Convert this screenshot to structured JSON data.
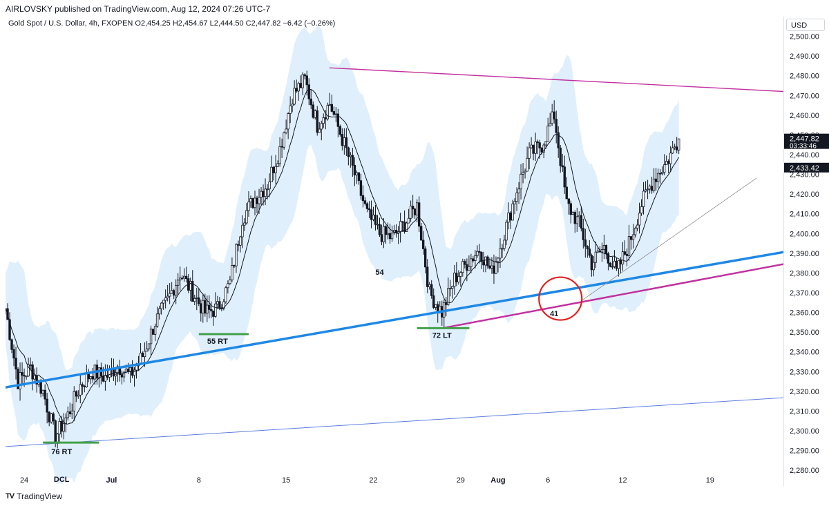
{
  "header": {
    "published": "AIRLOVSKY published on TradingView.com, Aug 12, 2024 07:26 UTC-7",
    "symbol": "Gold Spot / U.S. Dollar, 4h, FXOPEN",
    "ohlc": "O2,454.25  H2,454.67  L2,444.50  C2,447.82  −6.42 (−0.26%)"
  },
  "price_scale": {
    "currency": "USD",
    "ticks": [
      "2,500.00",
      "2,490.00",
      "2,480.00",
      "2,470.00",
      "2,460.00",
      "2,450.00",
      "2,440.00",
      "2,430.00",
      "2,420.00",
      "2,410.00",
      "2,400.00",
      "2,390.00",
      "2,380.00",
      "2,370.00",
      "2,360.00",
      "2,350.00",
      "2,340.00",
      "2,330.00",
      "2,320.00",
      "2,310.00",
      "2,300.00",
      "2,290.00",
      "2,280.00"
    ],
    "last_price": "2,447.82",
    "countdown": "03:33:46",
    "ma_value": "2,433.42"
  },
  "time_axis": {
    "labels": [
      "24",
      "Jul",
      "8",
      "15",
      "22",
      "29",
      "Aug",
      "6",
      "12",
      "19"
    ]
  },
  "footer": {
    "brand": "TradingView",
    "logo": "TV"
  },
  "chart_data": {
    "type": "candlestick",
    "title": "Gold Spot / U.S. Dollar, 4h, FXOPEN",
    "ylim": [
      2272,
      2510
    ],
    "x_range_days": [
      "Jun 22",
      "Aug 22"
    ],
    "colors": {
      "candle": "#131722",
      "band_fill": "#d6e9fb",
      "ma": "#131722",
      "blue_trend": "#1e88e5",
      "magenta_trend": "#c2309e",
      "thin_blue": "#5b7de0",
      "green_marks": "#43a047",
      "circle": "#e0201e",
      "thin_gray": "#8a8a8a"
    },
    "price_path": [
      {
        "day": 0,
        "price": 2362
      },
      {
        "day": 1,
        "price": 2325
      },
      {
        "day": 2,
        "price": 2332
      },
      {
        "day": 3,
        "price": 2320
      },
      {
        "day": 4,
        "price": 2297
      },
      {
        "day": 5,
        "price": 2308
      },
      {
        "day": 6,
        "price": 2323
      },
      {
        "day": 7,
        "price": 2330
      },
      {
        "day": 8,
        "price": 2327
      },
      {
        "day": 9,
        "price": 2333
      },
      {
        "day": 10,
        "price": 2328
      },
      {
        "day": 11,
        "price": 2338
      },
      {
        "day": 12,
        "price": 2355
      },
      {
        "day": 13,
        "price": 2366
      },
      {
        "day": 14,
        "price": 2380
      },
      {
        "day": 15,
        "price": 2370
      },
      {
        "day": 16,
        "price": 2360
      },
      {
        "day": 17,
        "price": 2362
      },
      {
        "day": 18,
        "price": 2375
      },
      {
        "day": 19,
        "price": 2408
      },
      {
        "day": 20,
        "price": 2418
      },
      {
        "day": 21,
        "price": 2425
      },
      {
        "day": 22,
        "price": 2443
      },
      {
        "day": 23,
        "price": 2470
      },
      {
        "day": 24,
        "price": 2478
      },
      {
        "day": 25,
        "price": 2455
      },
      {
        "day": 26,
        "price": 2466
      },
      {
        "day": 27,
        "price": 2448
      },
      {
        "day": 28,
        "price": 2430
      },
      {
        "day": 29,
        "price": 2410
      },
      {
        "day": 30,
        "price": 2400
      },
      {
        "day": 31,
        "price": 2398
      },
      {
        "day": 32,
        "price": 2405
      },
      {
        "day": 33,
        "price": 2414
      },
      {
        "day": 34,
        "price": 2370
      },
      {
        "day": 35,
        "price": 2360
      },
      {
        "day": 36,
        "price": 2377
      },
      {
        "day": 37,
        "price": 2385
      },
      {
        "day": 38,
        "price": 2392
      },
      {
        "day": 39,
        "price": 2380
      },
      {
        "day": 40,
        "price": 2400
      },
      {
        "day": 41,
        "price": 2422
      },
      {
        "day": 42,
        "price": 2440
      },
      {
        "day": 43,
        "price": 2445
      },
      {
        "day": 44,
        "price": 2460
      },
      {
        "day": 45,
        "price": 2415
      },
      {
        "day": 46,
        "price": 2405
      },
      {
        "day": 47,
        "price": 2385
      },
      {
        "day": 48,
        "price": 2393
      },
      {
        "day": 49,
        "price": 2380
      },
      {
        "day": 50,
        "price": 2395
      },
      {
        "day": 51,
        "price": 2415
      },
      {
        "day": 52,
        "price": 2428
      },
      {
        "day": 53,
        "price": 2436
      },
      {
        "day": 54,
        "price": 2448
      }
    ],
    "trendlines": [
      {
        "name": "blue-main",
        "p1": {
          "day": 0,
          "price": 2322
        },
        "p2": {
          "day": 65.5,
          "price": 2394
        }
      },
      {
        "name": "magenta-top",
        "p1": {
          "day": 26,
          "price": 2484
        },
        "p2": {
          "day": 65.5,
          "price": 2471
        }
      },
      {
        "name": "magenta-bottom",
        "p1": {
          "day": 35,
          "price": 2352
        },
        "p2": {
          "day": 64.5,
          "price": 2387
        }
      },
      {
        "name": "thin-blue",
        "p1": {
          "day": 0,
          "price": 2292
        },
        "p2": {
          "day": 65.5,
          "price": 2318
        }
      },
      {
        "name": "thin-gray",
        "p1": {
          "day": 46.2,
          "price": 2366
        },
        "p2": {
          "day": 60.2,
          "price": 2428
        }
      }
    ],
    "annotations": [
      {
        "text": "76 RT",
        "day": 4.5,
        "price": 2293
      },
      {
        "text": "DCL",
        "day": 4.5,
        "price": 2279
      },
      {
        "text": "55 RT",
        "day": 17,
        "price": 2349
      },
      {
        "text": "54",
        "day": 30,
        "price": 2384
      },
      {
        "text": "72 LT",
        "day": 35,
        "price": 2352
      },
      {
        "text": "41",
        "day": 44,
        "price": 2363
      }
    ],
    "support_marks": [
      {
        "day1": 3,
        "day2": 7.5,
        "price": 2294
      },
      {
        "day1": 15.5,
        "day2": 19.5,
        "price": 2349
      },
      {
        "day1": 33,
        "day2": 37.2,
        "price": 2352
      }
    ],
    "circle": {
      "day": 44.5,
      "price": 2367
    }
  }
}
